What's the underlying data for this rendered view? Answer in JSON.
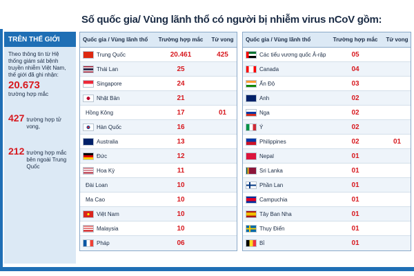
{
  "headline": "Số quốc gia/ Vùng lãnh thổ có người bị nhiễm virus nCoV gồm:",
  "sidebar": {
    "title": "TRÊN THẾ GIỚI",
    "intro": "Theo thông tin từ Hệ thống giám sát bệnh truyền nhiễm Việt Nam, thế giới đã ghi nhận:",
    "total_cases": "20.673",
    "total_cases_label": "trường hợp mắc",
    "deaths": "427",
    "deaths_label": "trường hợp tử vong,",
    "outside": "212",
    "outside_label": "trường hợp mắc bên ngoài Trung Quốc"
  },
  "left_table": {
    "headers": {
      "country": "Quốc gia / Vùng lãnh thổ",
      "cases": "Trường hợp mắc",
      "deaths": "Tử vong"
    },
    "rows": [
      {
        "country": "Trung Quốc",
        "cases": "20.461",
        "deaths": "425",
        "flag": "cn"
      },
      {
        "country": "Thái Lan",
        "cases": "25",
        "deaths": "",
        "flag": "th"
      },
      {
        "country": "Singapore",
        "cases": "24",
        "deaths": "",
        "flag": "sg"
      },
      {
        "country": "Nhật Bản",
        "cases": "21",
        "deaths": "",
        "flag": "jp"
      },
      {
        "country": "Hồng Kông",
        "cases": "17",
        "deaths": "01",
        "flag": "none"
      },
      {
        "country": "Hàn Quốc",
        "cases": "16",
        "deaths": "",
        "flag": "kr"
      },
      {
        "country": "Australia",
        "cases": "13",
        "deaths": "",
        "flag": "au"
      },
      {
        "country": "Đức",
        "cases": "12",
        "deaths": "",
        "flag": "de"
      },
      {
        "country": "Hoa Kỳ",
        "cases": "11",
        "deaths": "",
        "flag": "us"
      },
      {
        "country": "Đài Loan",
        "cases": "10",
        "deaths": "",
        "flag": "none"
      },
      {
        "country": "Ma Cao",
        "cases": "10",
        "deaths": "",
        "flag": "none"
      },
      {
        "country": "Việt Nam",
        "cases": "10",
        "deaths": "",
        "flag": "vn"
      },
      {
        "country": "Malaysia",
        "cases": "10",
        "deaths": "",
        "flag": "my"
      },
      {
        "country": "Pháp",
        "cases": "06",
        "deaths": "",
        "flag": "fr"
      }
    ]
  },
  "right_table": {
    "headers": {
      "country": "Quốc gia / Vùng lãnh thổ",
      "cases": "Trường hợp mắc",
      "deaths": "Tử vong"
    },
    "rows": [
      {
        "country": "Các tiểu vương quốc Ả-rập Thống Nhất",
        "cases": "05",
        "deaths": "",
        "flag": "ae"
      },
      {
        "country": "Canada",
        "cases": "04",
        "deaths": "",
        "flag": "ca"
      },
      {
        "country": "Ấn Độ",
        "cases": "03",
        "deaths": "",
        "flag": "in"
      },
      {
        "country": "Anh",
        "cases": "02",
        "deaths": "",
        "flag": "gb"
      },
      {
        "country": "Nga",
        "cases": "02",
        "deaths": "",
        "flag": "ru"
      },
      {
        "country": "Ý",
        "cases": "02",
        "deaths": "",
        "flag": "it"
      },
      {
        "country": "Philippines",
        "cases": "02",
        "deaths": "01",
        "flag": "ph"
      },
      {
        "country": "Nepal",
        "cases": "01",
        "deaths": "",
        "flag": "np"
      },
      {
        "country": "Sri Lanka",
        "cases": "01",
        "deaths": "",
        "flag": "lk"
      },
      {
        "country": "Phần Lan",
        "cases": "01",
        "deaths": "",
        "flag": "fi"
      },
      {
        "country": "Campuchia",
        "cases": "01",
        "deaths": "",
        "flag": "kh"
      },
      {
        "country": "Tây Ban Nha",
        "cases": "01",
        "deaths": "",
        "flag": "es"
      },
      {
        "country": "Thụy Điển",
        "cases": "01",
        "deaths": "",
        "flag": "se"
      },
      {
        "country": "Bỉ",
        "cases": "01",
        "deaths": "",
        "flag": "be"
      }
    ]
  },
  "flag_styles": {
    "cn": "linear-gradient(#de2910,#de2910)",
    "th": "linear-gradient(#a51931 0 17%,#f4f5f8 17% 33%,#2d2a4a 33% 67%,#f4f5f8 67% 83%,#a51931 83%)",
    "sg": "linear-gradient(#ed2939 0 50%,#ffffff 50%)",
    "jp": "radial-gradient(circle at 50% 50%,#bc002d 0 28%,#ffffff 30%)",
    "kr": "radial-gradient(circle at 50% 50%,#cd2e3a 0 20%,#0047a0 21% 30%,#ffffff 31%)",
    "au": "linear-gradient(#012169,#012169)",
    "de": "linear-gradient(#000000 0 33%,#dd0000 33% 67%,#ffce00 67%)",
    "us": "repeating-linear-gradient(#b22234 0 8%,#ffffff 8% 16%)",
    "vn": "radial-gradient(circle at 50% 50%,#ffff00 0 18%,#da251d 20%)",
    "my": "repeating-linear-gradient(#cc0001 0 8%,#ffffff 8% 16%)",
    "fr": "linear-gradient(90deg,#0055a4 0 33%,#ffffff 33% 67%,#ef4135 67%)",
    "ae": "linear-gradient(90deg,#ff0000 0 25%,transparent 25%),linear-gradient(#00732f 0 33%,#ffffff 33% 67%,#000000 67%)",
    "ca": "linear-gradient(90deg,#ff0000 0 25%,#ffffff 25% 75%,#ff0000 75%)",
    "in": "linear-gradient(#ff9933 0 33%,#ffffff 33% 67%,#138808 67%)",
    "gb": "linear-gradient(#012169,#012169)",
    "ru": "linear-gradient(#ffffff 0 33%,#0039a6 33% 67%,#d52b1e 67%)",
    "it": "linear-gradient(90deg,#009246 0 33%,#ffffff 33% 67%,#ce2b37 67%)",
    "ph": "linear-gradient(#0038a8 0 50%,#ce1126 50%)",
    "np": "linear-gradient(#dc143c,#dc143c)",
    "lk": "linear-gradient(90deg,#00534e 0 12%,#f7b718 12% 24%,#8d153a 24%)",
    "fi": "linear-gradient(90deg,transparent 0 28%,#003580 28% 42%,transparent 42%),linear-gradient(#ffffff 0 40%,#003580 40% 60%,#ffffff 60%)",
    "kh": "linear-gradient(#032ea1 0 25%,#e00025 25% 75%,#032ea1 75%)",
    "es": "linear-gradient(#aa151b 0 25%,#f1bf00 25% 75%,#aa151b 75%)",
    "se": "linear-gradient(90deg,transparent 0 30%,#fecc00 30% 44%,transparent 44%),linear-gradient(#006aa7 0 40%,#fecc00 40% 60%,#006aa7 60%)",
    "be": "linear-gradient(90deg,#000000 0 33%,#fdda24 33% 67%,#ef3340 67%)"
  }
}
